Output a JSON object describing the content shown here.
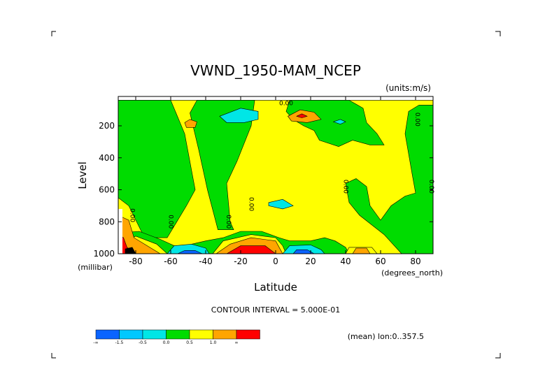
{
  "chart_data": {
    "type": "heatmap",
    "title": "VWND_1950-MAM_NCEP",
    "units": "(units:m/s)",
    "xlabel": "Latitude",
    "ylabel": "Level",
    "x_units": "(degrees_north)",
    "y_units": "(millibar)",
    "xlim": [
      -90,
      90
    ],
    "ylim": [
      1000,
      40
    ],
    "x_ticks": [
      -80,
      -60,
      -40,
      -20,
      0,
      20,
      40,
      60,
      80
    ],
    "x_tick_labels": [
      "-80",
      "-60",
      "-40",
      "-20",
      "0",
      "20",
      "40",
      "60",
      "80"
    ],
    "y_ticks": [
      200,
      400,
      600,
      800,
      1000
    ],
    "y_tick_labels": [
      "200",
      "400",
      "600",
      "800",
      "1000"
    ],
    "contour_interval_label": "CONTOUR INTERVAL = 5.000E-01",
    "footer_note": "(mean) lon:0..357.5",
    "contour_labels": [
      {
        "text": "0.00",
        "lat": 6,
        "level": 70,
        "rotate": 0
      },
      {
        "text": "0.00",
        "lat": 80,
        "level": 160,
        "rotate": 90
      },
      {
        "text": "0.00",
        "lat": 39,
        "level": 580,
        "rotate": 90
      },
      {
        "text": "0.00",
        "lat": 88,
        "level": 580,
        "rotate": 90
      },
      {
        "text": "0.00",
        "lat": -15,
        "level": 690,
        "rotate": 90
      },
      {
        "text": "0.00",
        "lat": -83,
        "level": 760,
        "rotate": 90
      },
      {
        "text": "0.00",
        "lat": -61,
        "level": 800,
        "rotate": 90
      },
      {
        "text": "0.00",
        "lat": -28,
        "level": 800,
        "rotate": 90
      }
    ],
    "colorbar": {
      "colors": [
        "#0a64ff",
        "#00c8ff",
        "#00e6e6",
        "#00dc00",
        "#ffff00",
        "#ffa500",
        "#ff0000"
      ],
      "labels": [
        "-∞",
        "-1.5",
        "-0.5",
        "0.0",
        "0.5",
        "1.0",
        "∞"
      ]
    },
    "levels_colors": {
      "-2": "#0a64ff",
      "-1": "#00e6e6",
      "0": "#00dc00",
      "1": "#ffff00",
      "2": "#ffa500",
      "3": "#ff0000",
      "4": "#000000"
    },
    "regions": [
      {
        "level": 1,
        "fill": "#ffff00",
        "points": [
          [
            -90,
            40
          ],
          [
            90,
            40
          ],
          [
            90,
            1000
          ],
          [
            -90,
            1000
          ]
        ]
      },
      {
        "level": 0,
        "fill": "#00dc00",
        "points": [
          [
            -90,
            40
          ],
          [
            -60,
            40
          ],
          [
            -52,
            250
          ],
          [
            -46,
            600
          ],
          [
            -51,
            700
          ],
          [
            -62,
            900
          ],
          [
            -75,
            900
          ],
          [
            -84,
            700
          ],
          [
            -90,
            650
          ]
        ]
      },
      {
        "level": 0,
        "fill": "#00dc00",
        "points": [
          [
            -45,
            40
          ],
          [
            -12,
            40
          ],
          [
            -14,
            200
          ],
          [
            -22,
            420
          ],
          [
            -28,
            560
          ],
          [
            -26,
            800
          ],
          [
            -24,
            850
          ],
          [
            -33,
            850
          ],
          [
            -39,
            600
          ],
          [
            -44,
            350
          ],
          [
            -49,
            120
          ]
        ]
      },
      {
        "level": 0,
        "fill": "#00dc00",
        "points": [
          [
            8,
            40
          ],
          [
            42,
            40
          ],
          [
            50,
            90
          ],
          [
            52,
            180
          ],
          [
            58,
            250
          ],
          [
            62,
            320
          ],
          [
            54,
            320
          ],
          [
            44,
            290
          ],
          [
            36,
            330
          ],
          [
            25,
            290
          ],
          [
            22,
            230
          ],
          [
            16,
            200
          ],
          [
            10,
            160
          ],
          [
            6,
            110
          ]
        ]
      },
      {
        "level": 0,
        "fill": "#00dc00",
        "points": [
          [
            40,
            560
          ],
          [
            46,
            530
          ],
          [
            52,
            580
          ],
          [
            54,
            700
          ],
          [
            60,
            790
          ],
          [
            66,
            700
          ],
          [
            74,
            640
          ],
          [
            80,
            620
          ],
          [
            78,
            500
          ],
          [
            74,
            250
          ],
          [
            76,
            110
          ],
          [
            82,
            70
          ],
          [
            90,
            70
          ],
          [
            90,
            1000
          ],
          [
            72,
            1000
          ],
          [
            62,
            880
          ],
          [
            48,
            760
          ],
          [
            42,
            680
          ]
        ]
      },
      {
        "level": 0,
        "fill": "#00dc00",
        "points": [
          [
            -92,
            870
          ],
          [
            -78,
            860
          ],
          [
            -66,
            910
          ],
          [
            -56,
            960
          ],
          [
            -40,
            920
          ],
          [
            -30,
            900
          ],
          [
            -20,
            860
          ],
          [
            -8,
            860
          ],
          [
            2,
            900
          ],
          [
            8,
            920
          ],
          [
            20,
            920
          ],
          [
            28,
            900
          ],
          [
            34,
            920
          ],
          [
            40,
            960
          ],
          [
            42,
            1000
          ],
          [
            -92,
            1000
          ]
        ]
      },
      {
        "level": 1,
        "fill": "#ffff00",
        "points": [
          [
            -92,
            960
          ],
          [
            -80,
            890
          ],
          [
            -68,
            940
          ],
          [
            -62,
            1000
          ],
          [
            -92,
            1000
          ]
        ]
      },
      {
        "level": 1,
        "fill": "#ffff00",
        "points": [
          [
            -36,
            1000
          ],
          [
            -30,
            920
          ],
          [
            -14,
            880
          ],
          [
            0,
            900
          ],
          [
            4,
            950
          ],
          [
            6,
            1000
          ]
        ]
      },
      {
        "level": 1,
        "fill": "#ffff00",
        "points": [
          [
            40,
            1000
          ],
          [
            42,
            960
          ],
          [
            55,
            960
          ],
          [
            58,
            1000
          ]
        ]
      },
      {
        "level": 2,
        "fill": "#ffa500",
        "points": [
          [
            -90,
            760
          ],
          [
            -84,
            790
          ],
          [
            -81,
            900
          ],
          [
            -72,
            960
          ],
          [
            -66,
            1000
          ],
          [
            -90,
            1000
          ]
        ]
      },
      {
        "level": 2,
        "fill": "#ffa500",
        "points": [
          [
            -34,
            1000
          ],
          [
            -26,
            940
          ],
          [
            -14,
            900
          ],
          [
            0,
            920
          ],
          [
            4,
            1000
          ]
        ]
      },
      {
        "level": 2,
        "fill": "#ffa500",
        "points": [
          [
            44,
            1000
          ],
          [
            46,
            965
          ],
          [
            52,
            965
          ],
          [
            54,
            1000
          ]
        ]
      },
      {
        "level": 3,
        "fill": "#ff0000",
        "points": [
          [
            -90,
            880
          ],
          [
            -87,
            900
          ],
          [
            -85,
            960
          ],
          [
            -80,
            1000
          ],
          [
            -90,
            1000
          ]
        ]
      },
      {
        "level": 3,
        "fill": "#ff0000",
        "points": [
          [
            -28,
            1000
          ],
          [
            -20,
            950
          ],
          [
            -6,
            950
          ],
          [
            0,
            1000
          ]
        ]
      },
      {
        "level": 4,
        "fill": "#000000",
        "points": [
          [
            -86,
            970
          ],
          [
            -82,
            960
          ],
          [
            -80,
            1000
          ],
          [
            -86,
            1000
          ]
        ]
      },
      {
        "level": -1,
        "fill": "#00e6e6",
        "points": [
          [
            -62,
            1000
          ],
          [
            -58,
            950
          ],
          [
            -48,
            940
          ],
          [
            -40,
            965
          ],
          [
            -38,
            1000
          ]
        ]
      },
      {
        "level": -1,
        "fill": "#00e6e6",
        "points": [
          [
            4,
            1000
          ],
          [
            8,
            950
          ],
          [
            20,
            945
          ],
          [
            26,
            975
          ],
          [
            28,
            1000
          ]
        ]
      },
      {
        "level": -1,
        "fill": "#00e6e6",
        "points": [
          [
            -32,
            140
          ],
          [
            -20,
            90
          ],
          [
            -10,
            110
          ],
          [
            -10,
            160
          ],
          [
            -18,
            180
          ],
          [
            -28,
            180
          ]
        ]
      },
      {
        "level": -1,
        "fill": "#00e6e6",
        "points": [
          [
            33,
            175
          ],
          [
            37,
            160
          ],
          [
            40,
            175
          ],
          [
            37,
            190
          ]
        ]
      },
      {
        "level": -1,
        "fill": "#00e6e6",
        "points": [
          [
            -4,
            680
          ],
          [
            4,
            660
          ],
          [
            10,
            700
          ],
          [
            4,
            720
          ],
          [
            -4,
            700
          ]
        ]
      },
      {
        "level": -2,
        "fill": "#0a64ff",
        "points": [
          [
            -56,
            1000
          ],
          [
            -52,
            980
          ],
          [
            -46,
            980
          ],
          [
            -42,
            1000
          ]
        ]
      },
      {
        "level": -2,
        "fill": "#0a64ff",
        "points": [
          [
            10,
            1000
          ],
          [
            12,
            975
          ],
          [
            18,
            975
          ],
          [
            22,
            1000
          ]
        ]
      },
      {
        "level": 2,
        "fill": "#ffa500",
        "points": [
          [
            -52,
            180
          ],
          [
            -49,
            160
          ],
          [
            -45,
            175
          ],
          [
            -46,
            210
          ],
          [
            -51,
            210
          ]
        ]
      },
      {
        "level": 2,
        "fill": "#ffa500",
        "points": [
          [
            7,
            140
          ],
          [
            14,
            100
          ],
          [
            22,
            115
          ],
          [
            26,
            160
          ],
          [
            18,
            180
          ],
          [
            9,
            170
          ]
        ]
      },
      {
        "level": 3,
        "fill": "#ff0000",
        "points": [
          [
            12,
            140
          ],
          [
            15,
            125
          ],
          [
            18,
            140
          ],
          [
            15,
            150
          ]
        ]
      }
    ]
  }
}
